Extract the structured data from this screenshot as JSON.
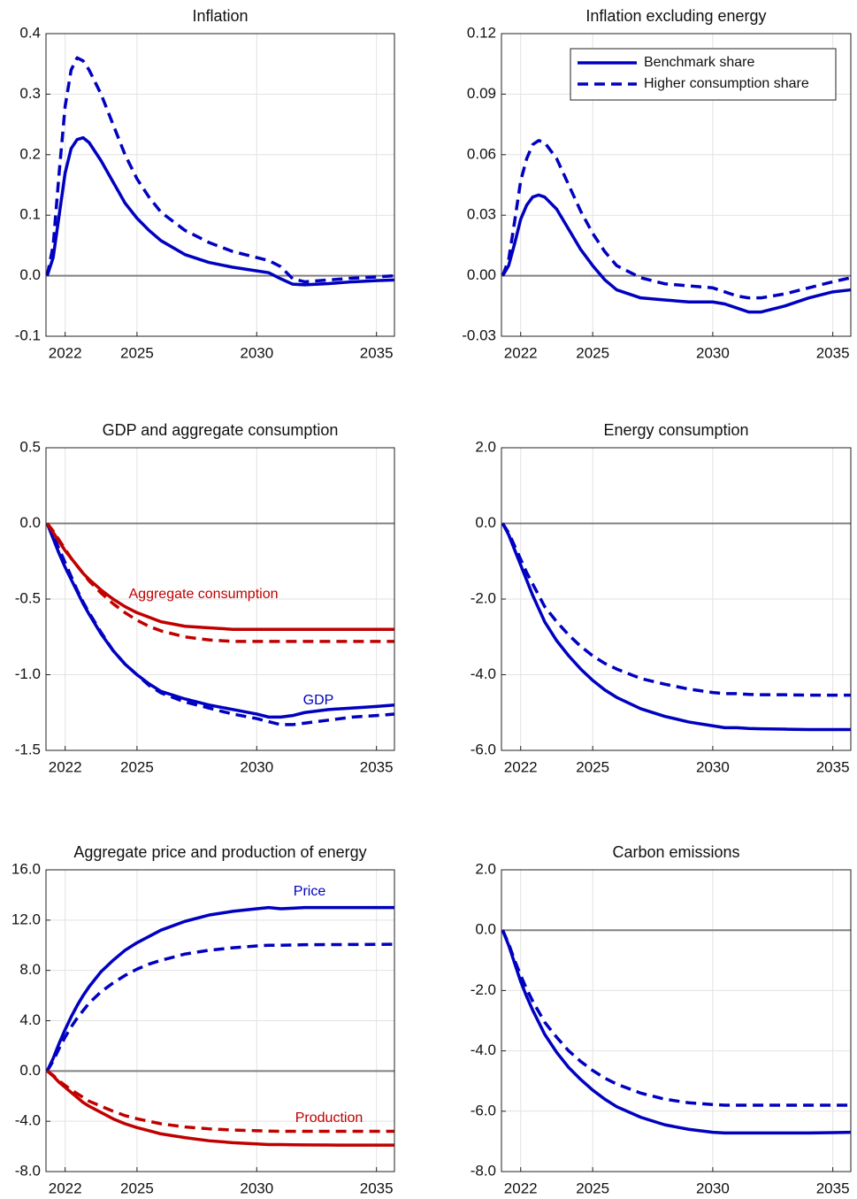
{
  "chart_data": [
    {
      "type": "line",
      "title": "Inflation",
      "x": [
        2021.25,
        2021.5,
        2021.75,
        2022,
        2022.25,
        2022.5,
        2022.75,
        2023,
        2023.5,
        2024,
        2024.5,
        2025,
        2025.5,
        2026,
        2027,
        2028,
        2029,
        2030,
        2030.5,
        2031,
        2031.5,
        2032,
        2033,
        2034,
        2035,
        2035.75
      ],
      "xlim": [
        2021.2,
        2035.75
      ],
      "xticks": [
        2022,
        2025,
        2030,
        2035
      ],
      "ylim": [
        -0.1,
        0.4
      ],
      "yticks": [
        {
          "value": -0.1,
          "label": "-0.1"
        },
        {
          "value": 0,
          "label": "0.0"
        },
        0.1,
        0.2,
        0.3,
        0.4
      ],
      "grid": true,
      "series": [
        {
          "color": "#0000c0",
          "dash": false,
          "values": [
            0,
            0.03,
            0.1,
            0.17,
            0.21,
            0.225,
            0.228,
            0.22,
            0.19,
            0.155,
            0.12,
            0.095,
            0.075,
            0.058,
            0.035,
            0.022,
            0.014,
            0.008,
            0.005,
            -0.005,
            -0.014,
            -0.015,
            -0.013,
            -0.01,
            -0.008,
            -0.007
          ]
        },
        {
          "color": "#0000c0",
          "dash": true,
          "values": [
            0,
            0.05,
            0.17,
            0.28,
            0.34,
            0.36,
            0.355,
            0.34,
            0.3,
            0.25,
            0.2,
            0.16,
            0.13,
            0.105,
            0.075,
            0.055,
            0.04,
            0.03,
            0.025,
            0.015,
            -0.005,
            -0.01,
            -0.007,
            -0.004,
            -0.002,
            0
          ]
        }
      ]
    },
    {
      "type": "line",
      "title": "Inflation excluding energy",
      "x": [
        2021.25,
        2021.5,
        2021.75,
        2022,
        2022.25,
        2022.5,
        2022.75,
        2023,
        2023.5,
        2024,
        2024.5,
        2025,
        2025.5,
        2026,
        2027,
        2028,
        2029,
        2030,
        2030.5,
        2031,
        2031.5,
        2032,
        2033,
        2034,
        2035,
        2035.75
      ],
      "xlim": [
        2021.2,
        2035.75
      ],
      "xticks": [
        2022,
        2025,
        2030,
        2035
      ],
      "ylim": [
        -0.03,
        0.12
      ],
      "yticks": [
        {
          "value": -0.03,
          "label": "-0.03"
        },
        {
          "value": 0,
          "label": "0.00"
        },
        0.03,
        {
          "value": 0.06,
          "label": "0.06"
        },
        0.09,
        0.12
      ],
      "grid": true,
      "legend": "upper right",
      "series": [
        {
          "name": "Benchmark share",
          "color": "#0000c0",
          "dash": false,
          "values": [
            0,
            0.005,
            0.016,
            0.028,
            0.035,
            0.039,
            0.04,
            0.039,
            0.033,
            0.023,
            0.013,
            0.005,
            -0.002,
            -0.007,
            -0.011,
            -0.012,
            -0.013,
            -0.013,
            -0.014,
            -0.016,
            -0.018,
            -0.018,
            -0.015,
            -0.011,
            -0.008,
            -0.007
          ]
        },
        {
          "name": "Higher consumption share",
          "color": "#0000c0",
          "dash": true,
          "values": [
            0,
            0.008,
            0.027,
            0.047,
            0.058,
            0.065,
            0.067,
            0.066,
            0.058,
            0.045,
            0.032,
            0.021,
            0.012,
            0.005,
            -0.001,
            -0.004,
            -0.005,
            -0.006,
            -0.008,
            -0.01,
            -0.011,
            -0.011,
            -0.009,
            -0.006,
            -0.003,
            -0.001
          ]
        }
      ]
    },
    {
      "type": "line",
      "title": "GDP and aggregate consumption",
      "x": [
        2021.25,
        2021.5,
        2021.75,
        2022,
        2022.25,
        2022.5,
        2022.75,
        2023,
        2023.5,
        2024,
        2024.5,
        2025,
        2025.5,
        2026,
        2027,
        2028,
        2029,
        2030,
        2030.5,
        2031,
        2031.5,
        2032,
        2033,
        2034,
        2035,
        2035.75
      ],
      "xlim": [
        2021.2,
        2035.75
      ],
      "xticks": [
        2022,
        2025,
        2030,
        2035
      ],
      "ylim": [
        -1.5,
        0.5
      ],
      "yticks": [
        {
          "value": -1.5,
          "label": "-1.5"
        },
        {
          "value": -1,
          "label": "-1.0"
        },
        {
          "value": -0.5,
          "label": "-0.5"
        },
        {
          "value": 0,
          "label": "0.0"
        },
        0.5
      ],
      "grid": true,
      "series": [
        {
          "label": "GDP",
          "color": "#0000c0",
          "dash": false,
          "values": [
            0,
            -0.1,
            -0.2,
            -0.29,
            -0.37,
            -0.45,
            -0.53,
            -0.6,
            -0.73,
            -0.84,
            -0.93,
            -1,
            -1.06,
            -1.11,
            -1.16,
            -1.2,
            -1.23,
            -1.26,
            -1.28,
            -1.28,
            -1.27,
            -1.25,
            -1.23,
            -1.22,
            -1.21,
            -1.2
          ]
        },
        {
          "color": "#0000c0",
          "dash": true,
          "values": [
            0,
            -0.08,
            -0.17,
            -0.26,
            -0.35,
            -0.44,
            -0.52,
            -0.59,
            -0.72,
            -0.84,
            -0.93,
            -1,
            -1.07,
            -1.12,
            -1.18,
            -1.22,
            -1.26,
            -1.29,
            -1.31,
            -1.33,
            -1.33,
            -1.32,
            -1.3,
            -1.28,
            -1.27,
            -1.26
          ]
        },
        {
          "label": "Aggregate consumption",
          "color": "#c00000",
          "dash": false,
          "values": [
            0,
            -0.06,
            -0.12,
            -0.18,
            -0.23,
            -0.28,
            -0.33,
            -0.37,
            -0.44,
            -0.5,
            -0.55,
            -0.59,
            -0.62,
            -0.65,
            -0.68,
            -0.69,
            -0.7,
            -0.7,
            -0.7,
            -0.7,
            -0.7,
            -0.7,
            -0.7,
            -0.7,
            -0.7,
            -0.7
          ]
        },
        {
          "color": "#c00000",
          "dash": true,
          "values": [
            0,
            -0.05,
            -0.11,
            -0.17,
            -0.23,
            -0.28,
            -0.33,
            -0.38,
            -0.46,
            -0.53,
            -0.59,
            -0.64,
            -0.68,
            -0.71,
            -0.75,
            -0.77,
            -0.78,
            -0.78,
            -0.78,
            -0.78,
            -0.78,
            -0.78,
            -0.78,
            -0.78,
            -0.78,
            -0.78
          ]
        }
      ]
    },
    {
      "type": "line",
      "title": "Energy consumption",
      "x": [
        2021.25,
        2021.5,
        2021.75,
        2022,
        2022.25,
        2022.5,
        2022.75,
        2023,
        2023.5,
        2024,
        2024.5,
        2025,
        2025.5,
        2026,
        2027,
        2028,
        2029,
        2030,
        2030.5,
        2031,
        2031.5,
        2032,
        2033,
        2034,
        2035,
        2035.75
      ],
      "xlim": [
        2021.2,
        2035.75
      ],
      "xticks": [
        2022,
        2025,
        2030,
        2035
      ],
      "ylim": [
        -6,
        2
      ],
      "yticks": [
        {
          "value": -6,
          "label": "-6.0"
        },
        {
          "value": -4,
          "label": "-4.0"
        },
        {
          "value": -2,
          "label": "-2.0"
        },
        {
          "value": 0,
          "label": "0.0"
        },
        {
          "value": 2,
          "label": "2.0"
        }
      ],
      "grid": true,
      "series": [
        {
          "color": "#0000c0",
          "dash": false,
          "values": [
            0,
            -0.3,
            -0.7,
            -1.1,
            -1.5,
            -1.9,
            -2.25,
            -2.6,
            -3.1,
            -3.5,
            -3.85,
            -4.15,
            -4.4,
            -4.6,
            -4.9,
            -5.1,
            -5.25,
            -5.35,
            -5.4,
            -5.4,
            -5.42,
            -5.43,
            -5.44,
            -5.45,
            -5.45,
            -5.45
          ]
        },
        {
          "color": "#0000c0",
          "dash": true,
          "values": [
            0,
            -0.25,
            -0.6,
            -0.95,
            -1.3,
            -1.6,
            -1.9,
            -2.2,
            -2.6,
            -2.95,
            -3.25,
            -3.5,
            -3.7,
            -3.85,
            -4.1,
            -4.25,
            -4.38,
            -4.47,
            -4.5,
            -4.5,
            -4.52,
            -4.53,
            -4.53,
            -4.54,
            -4.54,
            -4.54
          ]
        }
      ]
    },
    {
      "type": "line",
      "title": "Aggregate price and production of energy",
      "x": [
        2021.25,
        2021.5,
        2021.75,
        2022,
        2022.25,
        2022.5,
        2022.75,
        2023,
        2023.5,
        2024,
        2024.5,
        2025,
        2025.5,
        2026,
        2027,
        2028,
        2029,
        2030,
        2030.5,
        2031,
        2031.5,
        2032,
        2033,
        2034,
        2035,
        2035.75
      ],
      "xlim": [
        2021.2,
        2035.75
      ],
      "xticks": [
        2022,
        2025,
        2030,
        2035
      ],
      "ylim": [
        -8,
        16
      ],
      "yticks": [
        {
          "value": -8,
          "label": "-8.0"
        },
        {
          "value": -4,
          "label": "-4.0"
        },
        {
          "value": 0,
          "label": "0.0"
        },
        {
          "value": 4,
          "label": "4.0"
        },
        {
          "value": 8,
          "label": "8.0"
        },
        {
          "value": 12,
          "label": "12.0"
        },
        {
          "value": 16,
          "label": "16.0"
        }
      ],
      "grid": true,
      "series": [
        {
          "label": "Price",
          "color": "#0000c0",
          "dash": false,
          "values": [
            0,
            1,
            2.2,
            3.3,
            4.3,
            5.2,
            6,
            6.7,
            7.9,
            8.8,
            9.6,
            10.2,
            10.7,
            11.2,
            11.9,
            12.4,
            12.7,
            12.9,
            13,
            12.9,
            12.95,
            13,
            13,
            13,
            13,
            13
          ]
        },
        {
          "color": "#0000c0",
          "dash": true,
          "values": [
            0,
            0.8,
            1.8,
            2.7,
            3.5,
            4.2,
            4.8,
            5.4,
            6.3,
            7,
            7.6,
            8.1,
            8.5,
            8.8,
            9.3,
            9.6,
            9.8,
            9.95,
            10,
            10,
            10.02,
            10.04,
            10.05,
            10.06,
            10.07,
            10.08
          ]
        },
        {
          "color": "#c00000",
          "dash": false,
          "values": [
            0,
            -0.4,
            -0.9,
            -1.3,
            -1.7,
            -2.1,
            -2.5,
            -2.8,
            -3.3,
            -3.8,
            -4.2,
            -4.5,
            -4.75,
            -5,
            -5.3,
            -5.55,
            -5.7,
            -5.8,
            -5.85,
            -5.85,
            -5.87,
            -5.88,
            -5.89,
            -5.9,
            -5.9,
            -5.9
          ]
        },
        {
          "label": "Production",
          "color": "#c00000",
          "dash": true,
          "values": [
            0,
            -0.35,
            -0.8,
            -1.15,
            -1.5,
            -1.8,
            -2.1,
            -2.4,
            -2.8,
            -3.2,
            -3.55,
            -3.8,
            -4,
            -4.2,
            -4.45,
            -4.6,
            -4.7,
            -4.75,
            -4.78,
            -4.8,
            -4.8,
            -4.8,
            -4.8,
            -4.8,
            -4.8,
            -4.8
          ]
        }
      ]
    },
    {
      "type": "line",
      "title": "Carbon emissions",
      "x": [
        2021.25,
        2021.5,
        2021.75,
        2022,
        2022.25,
        2022.5,
        2022.75,
        2023,
        2023.5,
        2024,
        2024.5,
        2025,
        2025.5,
        2026,
        2027,
        2028,
        2029,
        2030,
        2030.5,
        2031,
        2031.5,
        2032,
        2033,
        2034,
        2035,
        2035.75
      ],
      "xlim": [
        2021.2,
        2035.75
      ],
      "xticks": [
        2022,
        2025,
        2030,
        2035
      ],
      "ylim": [
        -8,
        2
      ],
      "yticks": [
        {
          "value": -8,
          "label": "-8.0"
        },
        {
          "value": -6,
          "label": "-6.0"
        },
        {
          "value": -4,
          "label": "-4.0"
        },
        {
          "value": -2,
          "label": "-2.0"
        },
        {
          "value": 0,
          "label": "0.0"
        },
        {
          "value": 2,
          "label": "2.0"
        }
      ],
      "grid": true,
      "series": [
        {
          "color": "#0000c0",
          "dash": false,
          "values": [
            0,
            -0.5,
            -1.1,
            -1.7,
            -2.2,
            -2.65,
            -3.05,
            -3.45,
            -4.05,
            -4.55,
            -4.95,
            -5.3,
            -5.6,
            -5.85,
            -6.2,
            -6.45,
            -6.6,
            -6.7,
            -6.72,
            -6.72,
            -6.72,
            -6.72,
            -6.72,
            -6.72,
            -6.71,
            -6.7
          ]
        },
        {
          "color": "#0000c0",
          "dash": true,
          "values": [
            0,
            -0.45,
            -1,
            -1.5,
            -1.95,
            -2.35,
            -2.7,
            -3.05,
            -3.55,
            -4,
            -4.35,
            -4.65,
            -4.9,
            -5.1,
            -5.4,
            -5.6,
            -5.72,
            -5.78,
            -5.8,
            -5.8,
            -5.8,
            -5.8,
            -5.8,
            -5.8,
            -5.8,
            -5.8
          ]
        }
      ]
    }
  ]
}
